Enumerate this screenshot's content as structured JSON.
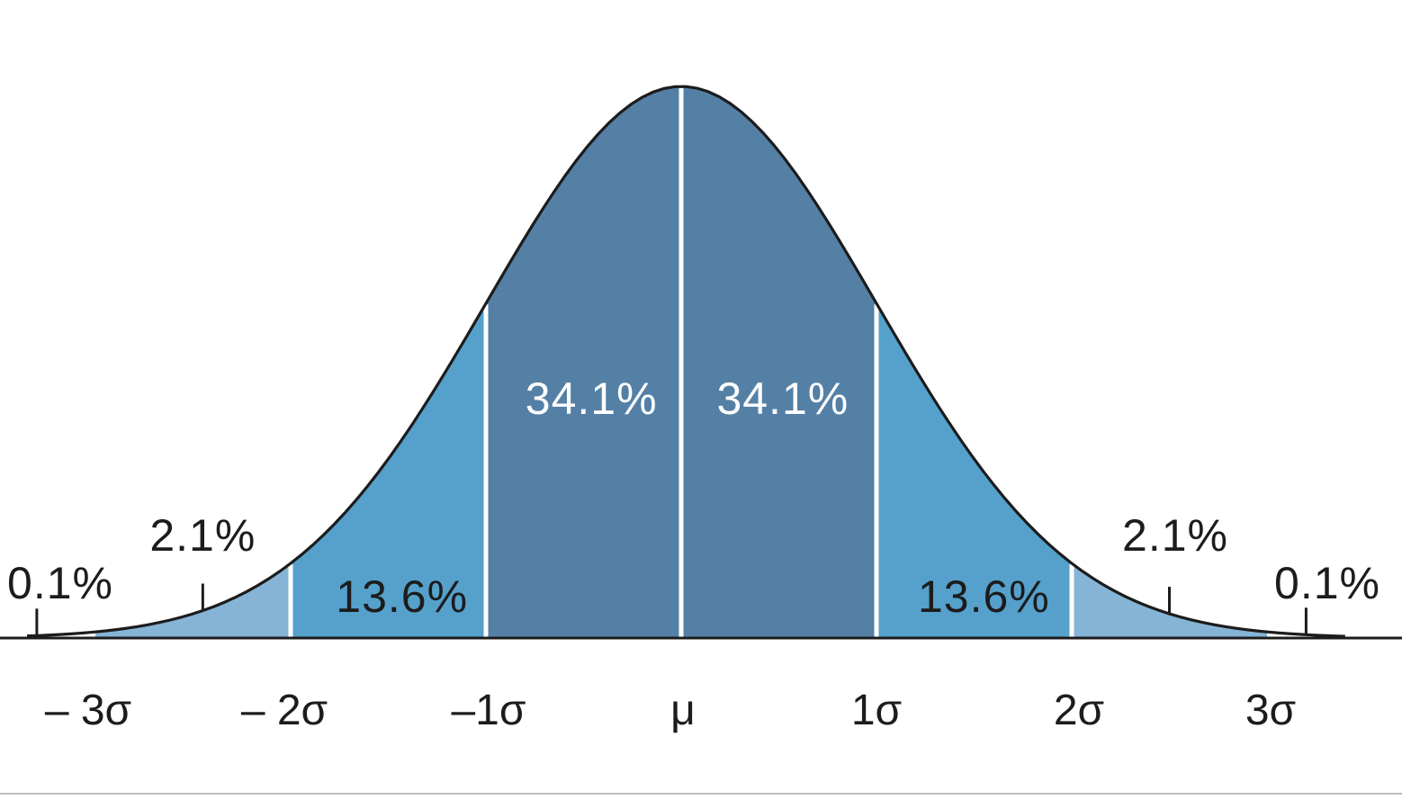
{
  "chart_data": {
    "type": "area",
    "title": "",
    "xlabel": "",
    "ylabel": "",
    "distribution": "normal",
    "xlim": [
      -3.35,
      3.65
    ],
    "ticks": [
      {
        "x": -3,
        "label": "– 3σ"
      },
      {
        "x": -2,
        "label": "– 2σ"
      },
      {
        "x": -1,
        "label": "–1σ"
      },
      {
        "x": 0,
        "label": "μ"
      },
      {
        "x": 1,
        "label": "1σ"
      },
      {
        "x": 2,
        "label": "2σ"
      },
      {
        "x": 3,
        "label": "3σ"
      }
    ],
    "regions": [
      {
        "from": -3,
        "to": -2,
        "percent": 2.1,
        "label": "2.1%",
        "color": "#85b4d6"
      },
      {
        "from": -2,
        "to": -1,
        "percent": 13.6,
        "label": "13.6%",
        "color": "#55a1cc"
      },
      {
        "from": -1,
        "to": 0,
        "percent": 34.1,
        "label": "34.1%",
        "color": "#5480a6"
      },
      {
        "from": 0,
        "to": 1,
        "percent": 34.1,
        "label": "34.1%",
        "color": "#5480a6"
      },
      {
        "from": 1,
        "to": 2,
        "percent": 13.6,
        "label": "13.6%",
        "color": "#55a1cc"
      },
      {
        "from": 2,
        "to": 3,
        "percent": 2.1,
        "label": "2.1%",
        "color": "#85b4d6"
      }
    ],
    "tails": [
      {
        "side": "left",
        "percent": 0.1,
        "label": "0.1%"
      },
      {
        "side": "right",
        "percent": 0.1,
        "label": "0.1%"
      }
    ],
    "colors": {
      "curve": "#1c1c1c",
      "axis": "#1c1c1c",
      "divider": "#ffffff",
      "inner_label": "#ffffff",
      "outer_label": "#1c1c1c"
    },
    "grid": false,
    "legend": "none"
  }
}
